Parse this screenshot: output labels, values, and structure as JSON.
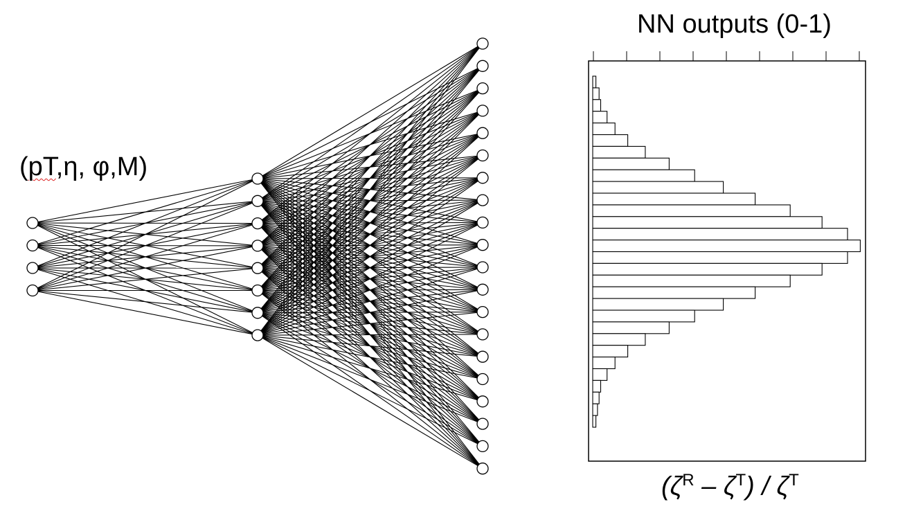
{
  "network": {
    "input_label_parts": [
      "(",
      "pT",
      ",η, φ,M)"
    ],
    "layers": [
      4,
      8,
      20
    ]
  },
  "histogram": {
    "title": "NN outputs (0-1)",
    "xlabel_parts": [
      "(ζ",
      "R",
      " – ζ",
      "T",
      ") / ζ",
      "T"
    ],
    "bin_counts": [
      0.01,
      0.02,
      0.025,
      0.045,
      0.07,
      0.11,
      0.165,
      0.24,
      0.32,
      0.41,
      0.51,
      0.62,
      0.72,
      0.8,
      0.84,
      0.8,
      0.72,
      0.62,
      0.51,
      0.41,
      0.32,
      0.24,
      0.165,
      0.11,
      0.07,
      0.045,
      0.025,
      0.02,
      0.015,
      0.01
    ]
  }
}
